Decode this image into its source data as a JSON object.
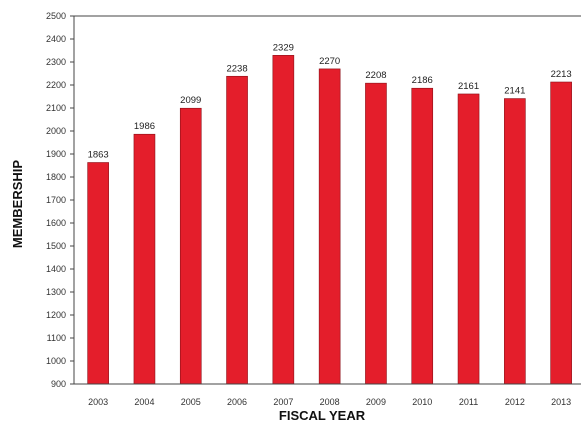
{
  "chart_data": {
    "type": "bar",
    "categories": [
      "2003",
      "2004",
      "2005",
      "2006",
      "2007",
      "2008",
      "2009",
      "2010",
      "2011",
      "2012",
      "2013"
    ],
    "values": [
      1863,
      1986,
      2099,
      2238,
      2329,
      2270,
      2208,
      2186,
      2161,
      2141,
      2213
    ],
    "data_labels": [
      "1863",
      "1986",
      "2099",
      "2238",
      "2329",
      "2270",
      "2208",
      "2186",
      "2161",
      "2141",
      "2213"
    ],
    "xlabel": "FISCAL YEAR",
    "ylabel": "MEMBERSHIP",
    "ylim": [
      900,
      2500
    ],
    "yticks": [
      900,
      1000,
      1100,
      1200,
      1300,
      1400,
      1500,
      1600,
      1700,
      1800,
      1900,
      2000,
      2100,
      2200,
      2300,
      2400,
      2500
    ],
    "grid": false,
    "bar_color": "#e41e2b",
    "bar_edge_color": "#8a0f17"
  }
}
